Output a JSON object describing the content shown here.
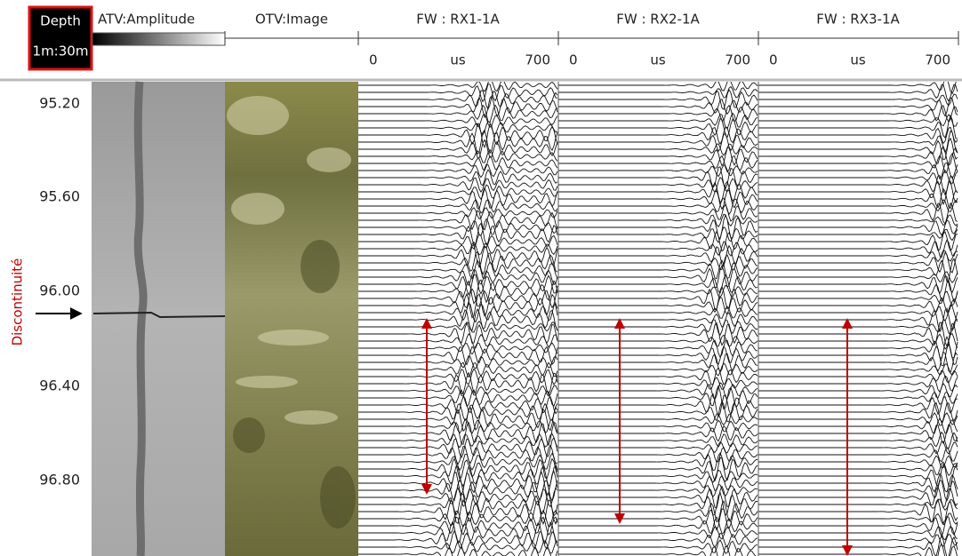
{
  "header": {
    "depth": {
      "title": "Depth",
      "scale": "1m:30m"
    },
    "tracks": [
      {
        "title": "ATV:Amplitude"
      },
      {
        "title": "OTV:Image"
      },
      {
        "title": "FW : RX1-1A",
        "scale": [
          "0",
          "us",
          "700"
        ]
      },
      {
        "title": "FW : RX2-1A",
        "scale": [
          "0",
          "us",
          "700"
        ]
      },
      {
        "title": "FW : RX3-1A",
        "scale": [
          "0",
          "us",
          "700"
        ]
      }
    ]
  },
  "depth_labels": [
    "95.20",
    "95.60",
    "96.00",
    "96.40",
    "96.80"
  ],
  "annotation": "Discontinuité"
}
